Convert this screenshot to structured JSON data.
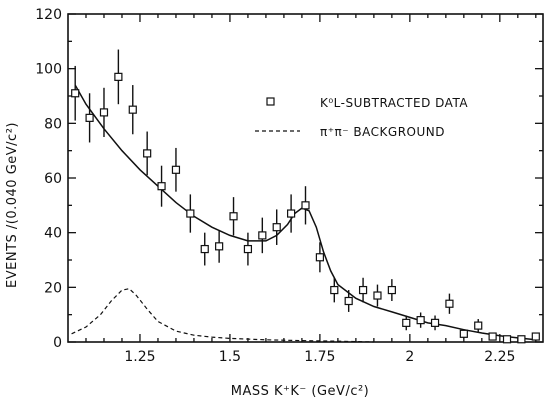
{
  "chart_data": {
    "type": "scatter",
    "xlabel": "MASS K⁺K⁻ (GeV/c²)",
    "ylabel": "EVENTS /(0.040 GeV/c²)",
    "xlim": [
      1.05,
      2.37
    ],
    "ylim": [
      0,
      120
    ],
    "x_ticks": [
      1.25,
      1.5,
      1.75,
      2,
      2.25
    ],
    "x_tick_labels": [
      "1.25",
      "1.5",
      "1.75",
      "2",
      "2.25"
    ],
    "y_ticks": [
      0,
      20,
      40,
      60,
      80,
      100,
      120
    ],
    "y_tick_labels": [
      "0",
      "20",
      "40",
      "60",
      "80",
      "100",
      "120"
    ],
    "grid": false,
    "legend_position": "top-right",
    "series": [
      {
        "name": "K⁰L-SUBTRACTED DATA",
        "marker": "open-square",
        "x": [
          1.07,
          1.11,
          1.15,
          1.19,
          1.23,
          1.27,
          1.31,
          1.35,
          1.39,
          1.43,
          1.47,
          1.51,
          1.55,
          1.59,
          1.63,
          1.67,
          1.71,
          1.75,
          1.79,
          1.83,
          1.87,
          1.91,
          1.95,
          1.99,
          2.03,
          2.07,
          2.11,
          2.15,
          2.19,
          2.23,
          2.27,
          2.31,
          2.35
        ],
        "y": [
          91,
          82,
          84,
          97,
          85,
          69,
          57,
          63,
          47,
          34,
          35,
          46,
          34,
          39,
          42,
          47,
          50,
          31,
          19,
          15,
          19,
          17,
          19,
          7,
          8,
          7,
          14,
          3,
          6,
          2,
          1,
          1,
          2
        ],
        "yerr": [
          10,
          9,
          9,
          10,
          9,
          8,
          7.5,
          8,
          7,
          6,
          6,
          7,
          6,
          6.5,
          6.5,
          7,
          7,
          5.5,
          4.5,
          4,
          4.5,
          4,
          4,
          2.7,
          2.8,
          2.7,
          3.7,
          1.7,
          2.4,
          1.4,
          1,
          1,
          1.4
        ]
      },
      {
        "name": "",
        "style": "solid",
        "x": [
          1.07,
          1.1,
          1.15,
          1.2,
          1.25,
          1.3,
          1.35,
          1.4,
          1.45,
          1.5,
          1.55,
          1.6,
          1.63,
          1.66,
          1.68,
          1.7,
          1.72,
          1.74,
          1.76,
          1.78,
          1.8,
          1.85,
          1.9,
          1.95,
          2.0,
          2.05,
          2.1,
          2.15,
          2.2,
          2.25,
          2.3,
          2.35
        ],
        "y": [
          94,
          87,
          78,
          70,
          63,
          57,
          51,
          46,
          42,
          39,
          37,
          37,
          39,
          43,
          47,
          49,
          48,
          42,
          33,
          26,
          21,
          16,
          13,
          11,
          9,
          7,
          6,
          4.5,
          3.3,
          2.3,
          1.5,
          0.8
        ]
      },
      {
        "name": "π⁺π⁻ BACKGROUND",
        "style": "dashed",
        "x": [
          1.06,
          1.1,
          1.14,
          1.17,
          1.2,
          1.22,
          1.24,
          1.27,
          1.3,
          1.35,
          1.4,
          1.45,
          1.5,
          1.6,
          1.7,
          1.8,
          1.9
        ],
        "y": [
          3,
          5.5,
          10,
          15,
          19,
          19.5,
          17,
          12,
          7.5,
          4,
          2.5,
          1.8,
          1.3,
          0.8,
          0.5,
          0.3,
          0
        ]
      }
    ]
  }
}
